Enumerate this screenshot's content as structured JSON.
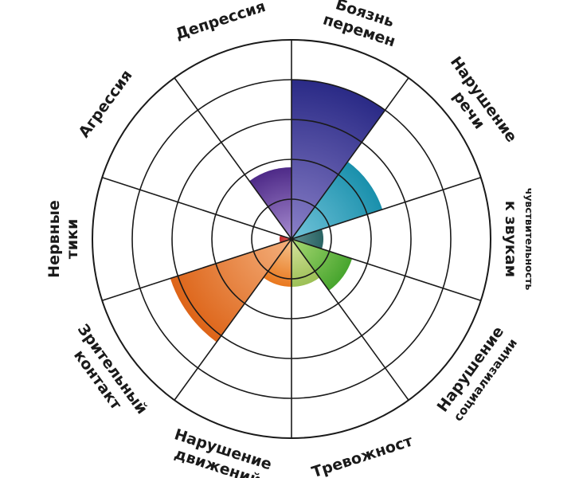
{
  "chart_data": {
    "type": "polar-area",
    "rmax": 5,
    "grid": true,
    "categories": [
      "Боязнь перемен",
      "Нарушение речи",
      "Чувствительность к звукам",
      "Нарушение социализации",
      "Тревожност",
      "Нарушение движений",
      "Зрительный контакт",
      "Нервные тики",
      "Агрессия",
      "Депрессия"
    ],
    "values": [
      4,
      2.4,
      0.8,
      1.6,
      1.2,
      1.2,
      3.2,
      0.3,
      0,
      1.8
    ],
    "colors": [
      [
        "#8a80c8",
        "#2a2a86"
      ],
      [
        "#73c4da",
        "#1a90ac"
      ],
      [
        "#5f9090",
        "#2a6464"
      ],
      [
        "#a9d873",
        "#47a52e"
      ],
      [
        "#d7e39f",
        "#9cc055"
      ],
      [
        "#f5c48f",
        "#e9781e"
      ],
      [
        "#f4b07d",
        "#dd6418"
      ],
      [
        "#e06060",
        "#c02828"
      ],
      [
        "#888888",
        "#555555"
      ],
      [
        "#a78cd0",
        "#4e2a88"
      ]
    ],
    "labels": [
      [
        "Боязнь",
        "перемен"
      ],
      [
        "Нарушение",
        "речи"
      ],
      [
        "чувствительность",
        "к звукам"
      ],
      [
        "Нарушение",
        "социализации"
      ],
      [
        "Тревожност"
      ],
      [
        "Нарушение",
        "движений"
      ],
      [
        "Зрительный",
        "контакт"
      ],
      [
        "Нервные",
        "тики"
      ],
      [
        "Агрессия"
      ],
      [
        "Депрессия"
      ]
    ]
  }
}
